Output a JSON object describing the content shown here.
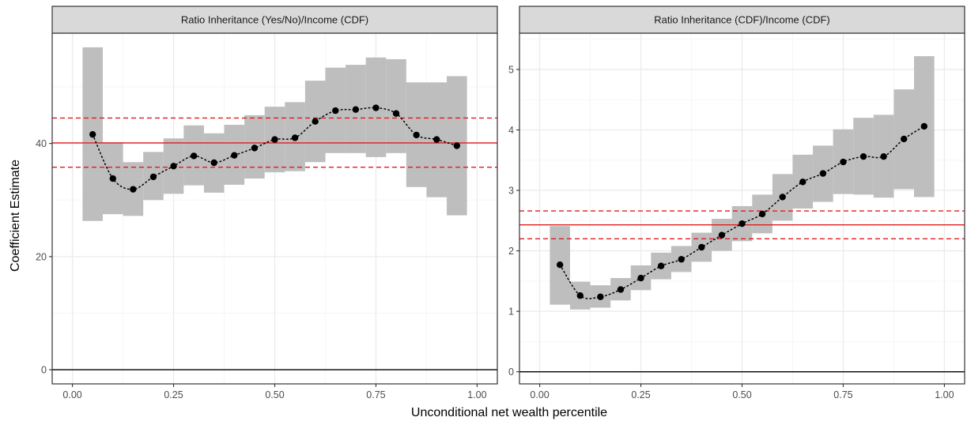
{
  "chart_data": [
    {
      "type": "scatter",
      "title": "Ratio Inheritance (Yes/No)/Income (CDF)",
      "xlabel": "Unconditional net wealth percentile",
      "ylabel": "Coefficient Estimate",
      "xlim": [
        -0.05,
        1.05
      ],
      "ylim": [
        -2.5,
        59.5
      ],
      "x_ticks": [
        0,
        0.25,
        0.5,
        0.75,
        1
      ],
      "x_tick_labels": [
        "0.00",
        "0.25",
        "0.50",
        "0.75",
        "1.00"
      ],
      "y_ticks": [
        0,
        20,
        40
      ],
      "y_tick_labels": [
        "0",
        "20",
        "40"
      ],
      "grid": true,
      "x": [
        0.05,
        0.1,
        0.15,
        0.2,
        0.25,
        0.3,
        0.35,
        0.4,
        0.45,
        0.5,
        0.55,
        0.6,
        0.65,
        0.7,
        0.75,
        0.8,
        0.85,
        0.9,
        0.95
      ],
      "estimate": [
        41.6,
        33.8,
        31.9,
        34.1,
        36.0,
        37.8,
        36.6,
        37.9,
        39.2,
        40.7,
        41.0,
        43.9,
        45.8,
        46.0,
        46.3,
        45.3,
        41.5,
        40.7,
        39.6
      ],
      "ci_lower": [
        26.3,
        27.5,
        27.2,
        30.0,
        31.1,
        32.6,
        31.3,
        32.7,
        33.8,
        34.9,
        35.1,
        36.7,
        38.3,
        38.3,
        37.6,
        38.3,
        32.3,
        30.5,
        27.3
      ],
      "ci_upper": [
        57.0,
        40.2,
        36.7,
        38.5,
        40.9,
        43.2,
        41.8,
        43.3,
        45.0,
        46.5,
        47.3,
        51.1,
        53.4,
        53.9,
        55.2,
        54.9,
        50.8,
        50.8,
        51.9
      ],
      "overall_estimate": 40.1,
      "overall_ci": [
        35.8,
        44.5
      ],
      "reference_line": 0
    },
    {
      "type": "scatter",
      "title": "Ratio Inheritance (CDF)/Income (CDF)",
      "xlabel": "Unconditional net wealth percentile",
      "ylabel": "Coefficient Estimate",
      "xlim": [
        -0.05,
        1.05
      ],
      "ylim": [
        -0.2,
        5.6
      ],
      "x_ticks": [
        0,
        0.25,
        0.5,
        0.75,
        1
      ],
      "x_tick_labels": [
        "0.00",
        "0.25",
        "0.50",
        "0.75",
        "1.00"
      ],
      "y_ticks": [
        0,
        1,
        2,
        3,
        4,
        5
      ],
      "y_tick_labels": [
        "0",
        "1",
        "2",
        "3",
        "4",
        "5"
      ],
      "grid": true,
      "x": [
        0.05,
        0.1,
        0.15,
        0.2,
        0.25,
        0.3,
        0.35,
        0.4,
        0.45,
        0.5,
        0.55,
        0.6,
        0.65,
        0.7,
        0.75,
        0.8,
        0.85,
        0.9,
        0.95
      ],
      "estimate": [
        1.77,
        1.26,
        1.24,
        1.36,
        1.55,
        1.75,
        1.86,
        2.06,
        2.26,
        2.45,
        2.61,
        2.89,
        3.14,
        3.28,
        3.47,
        3.56,
        3.56,
        3.85,
        4.06
      ],
      "ci_lower": [
        1.11,
        1.03,
        1.06,
        1.18,
        1.35,
        1.53,
        1.65,
        1.82,
        2.0,
        2.16,
        2.29,
        2.5,
        2.7,
        2.81,
        2.94,
        2.93,
        2.88,
        3.02,
        2.89
      ],
      "ci_upper": [
        2.41,
        1.49,
        1.43,
        1.55,
        1.76,
        1.97,
        2.08,
        2.3,
        2.53,
        2.74,
        2.93,
        3.27,
        3.59,
        3.74,
        4.01,
        4.2,
        4.25,
        4.67,
        5.22
      ],
      "overall_estimate": 2.43,
      "overall_ci": [
        2.2,
        2.66
      ],
      "reference_line": 0
    }
  ],
  "colors": {
    "ci_band": "#bebebe",
    "overall_line": "#e41a1c",
    "points": "#000000",
    "reference_line": "#000000",
    "grid_major": "#ebebeb",
    "grid_minor": "#f5f5f5",
    "strip_background": "#d9d9d9"
  }
}
